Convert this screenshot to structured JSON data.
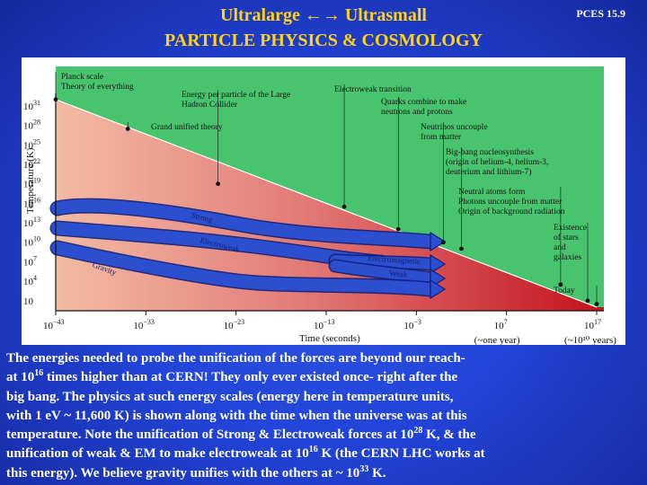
{
  "slide": {
    "title_line1": "Ultralarge ←→ Ultrasmall",
    "title_line2": "PARTICLE PHYSICS  &  COSMOLOGY",
    "slide_number": "PCES  15.9"
  },
  "chart_data": {
    "type": "area",
    "xlabel": "Time (seconds)",
    "ylabel": "Temperature (K)",
    "x_scale": "log",
    "y_scale": "log",
    "xlim": [
      1e-43,
      1e+17
    ],
    "ylim": [
      1,
      1e+31
    ],
    "x_tick_labels": [
      {
        "value": 1e-43,
        "base": "10",
        "exp": "−43",
        "sub": ""
      },
      {
        "value": 1e-33,
        "base": "10",
        "exp": "−33",
        "sub": ""
      },
      {
        "value": 1e-23,
        "base": "10",
        "exp": "−23",
        "sub": ""
      },
      {
        "value": 1e-13,
        "base": "10",
        "exp": "−13",
        "sub": ""
      },
      {
        "value": 0.001,
        "base": "10",
        "exp": "−3",
        "sub": ""
      },
      {
        "value": 10000000.0,
        "base": "10",
        "exp": "7",
        "sub": "(~one year)"
      },
      {
        "value": 1e+17,
        "base": "10",
        "exp": "17",
        "sub": "(~10¹⁰ years)"
      }
    ],
    "y_tick_labels": [
      {
        "value": 1e+31,
        "base": "10",
        "exp": "31"
      },
      {
        "value": 1e+28,
        "base": "10",
        "exp": "28"
      },
      {
        "value": 1e+25,
        "base": "10",
        "exp": "25"
      },
      {
        "value": 1e+22,
        "base": "10",
        "exp": "22"
      },
      {
        "value": 1e+19,
        "base": "10",
        "exp": "19"
      },
      {
        "value": 1e+16,
        "base": "10",
        "exp": "16"
      },
      {
        "value": 10000000000000.0,
        "base": "10",
        "exp": "13"
      },
      {
        "value": 10000000000.0,
        "base": "10",
        "exp": "10"
      },
      {
        "value": 10000000.0,
        "base": "10",
        "exp": "7"
      },
      {
        "value": 10000.0,
        "base": "10",
        "exp": "4"
      },
      {
        "value": 10,
        "base": "10",
        "exp": ""
      }
    ],
    "series": [
      {
        "x": [
          1e-43,
          1e+17
        ],
        "y": [
          1e+32,
          1
        ]
      }
    ],
    "epochs": [
      {
        "x": 1e-43,
        "y": 1e+32,
        "label": "Planck scale\nTheory of everything"
      },
      {
        "x": 1e-35,
        "y": 3e+27,
        "label": "Grand unified theory"
      },
      {
        "x": 1e-25,
        "y": 1e+19,
        "label": "Energy per particle of the Large\nHadron Collider"
      },
      {
        "x": 1e-11,
        "y": 3000000000000000.0,
        "label": "Electroweak transition"
      },
      {
        "x": 1e-05,
        "y": 1000000000000.0,
        "label": "Quarks combine to make\nneutrons and protons"
      },
      {
        "x": 1,
        "y": 10000000000.0,
        "label": "Neutrinos uncouple\nfrom matter"
      },
      {
        "x": 100,
        "y": 1000000000.0,
        "label": "Big-bang nucleosynthesis\n(origin of helium-4, helium-3,\ndeuterium and lithium-7)"
      },
      {
        "x": 10000000000000.0,
        "y": 3000,
        "label": "Neutral atoms form\nPhotons uncouple from matter\nOrigin of background radiation"
      },
      {
        "x": 1e+16,
        "y": 10,
        "label": "Existence\nof stars\nand\ngalaxies"
      },
      {
        "x": 1e+17,
        "y": 3,
        "label": "Today"
      }
    ],
    "forces": [
      {
        "name": "Strong",
        "split_x": 1e-35
      },
      {
        "name": "Electroweak",
        "split_x": 1e-35
      },
      {
        "name": "Electromagnetic",
        "split_x": 1e-11
      },
      {
        "name": "Weak",
        "split_x": 1e-11
      },
      {
        "name": "Gravity",
        "split_x": 1e-43
      }
    ],
    "colors": {
      "background_above": "#48c46e",
      "region_early": "#f3bba4",
      "region_late": "#c5121c",
      "force_arrow": "#2c4fd0"
    }
  },
  "caption_lines": [
    [
      {
        "t": "The energies needed to probe the unification of the forces are beyond our reach-"
      }
    ],
    [
      {
        "t": "at 10"
      },
      {
        "sup": "16"
      },
      {
        "t": " times higher than at CERN! They  only ever existed once- right after the"
      }
    ],
    [
      {
        "t": "big bang. The physics at such energy scales (energy here in temperature units,"
      }
    ],
    [
      {
        "t": "with 1 eV ~ 11,600 K) is shown along with the time when the universe was at this"
      }
    ],
    [
      {
        "t": "temperature. Note the unification of Strong & Electroweak forces at 10"
      },
      {
        "sup": "28"
      },
      {
        "t": " K, & the"
      }
    ],
    [
      {
        "t": "unification of weak & EM to make electroweak at 10"
      },
      {
        "sup": "16"
      },
      {
        "t": " K (the CERN LHC works at"
      }
    ],
    [
      {
        "t": "this energy). We believe gravity unifies with the others at ~ 10"
      },
      {
        "sup": "33"
      },
      {
        "t": " K."
      }
    ]
  ]
}
